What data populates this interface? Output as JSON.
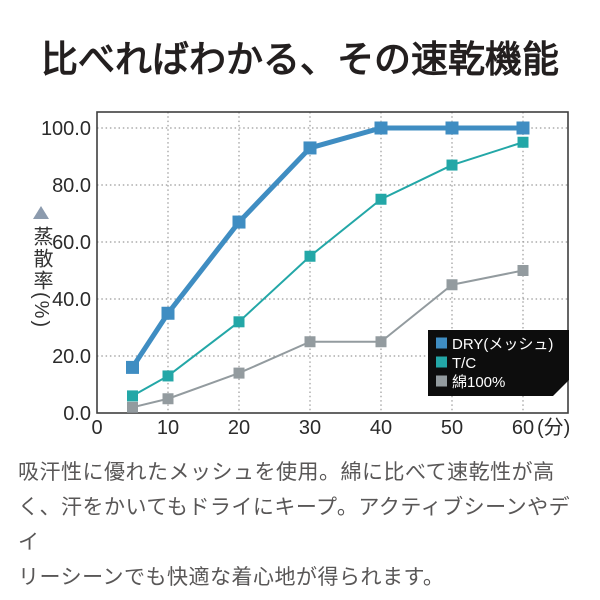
{
  "title": "比べればわかる、その速乾機能",
  "description": "吸汗性に優れたメッシュを使用。綿に比べて速乾性が高\nく、汗をかいてもドライにキープ。アクティブシーンやデイ\nリーシーンでも快適な着心地が得られます。",
  "chart_data": {
    "type": "line",
    "title": "",
    "xlabel": "",
    "ylabel": "蒸散率(%)",
    "x_axis_unit": "(分)",
    "x": [
      5,
      10,
      20,
      30,
      40,
      50,
      60
    ],
    "x_ticks": [
      0,
      10,
      20,
      30,
      40,
      50,
      60
    ],
    "x_tick_labels": [
      "0",
      "10",
      "20",
      "30",
      "40",
      "50",
      "60"
    ],
    "y_ticks": [
      0,
      20,
      40,
      60,
      80,
      100
    ],
    "y_tick_labels": [
      "0.0",
      "20.0",
      "40.0",
      "60.0",
      "80.0",
      "100.0"
    ],
    "xlim": [
      0,
      66
    ],
    "ylim": [
      0,
      106
    ],
    "grid": "dotted",
    "legend_position": "bottom-right",
    "series": [
      {
        "id": "dry-mesh",
        "name": "DRY(メッシュ)",
        "color": "#3f8dc2",
        "line_width": 5,
        "marker_size": 13,
        "values": [
          16,
          35,
          67,
          93,
          100,
          100,
          100
        ]
      },
      {
        "id": "tc",
        "name": "T/C",
        "color": "#23a7a7",
        "line_width": 2,
        "marker_size": 11,
        "values": [
          6,
          13,
          32,
          55,
          75,
          87,
          95
        ]
      },
      {
        "id": "cotton-100",
        "name": "綿100%",
        "color": "#939b9f",
        "line_width": 2,
        "marker_size": 11,
        "values": [
          2,
          5,
          14,
          25,
          25,
          45,
          50
        ]
      }
    ]
  },
  "colors": {
    "background": "#ffffff",
    "title_text": "#231f1f",
    "body_text": "#595757",
    "axis_text": "#2b2b2b",
    "grid": "#9a9a9a",
    "plot_border": "#3f3f3f",
    "y_axis_triangle": "#8c9bae",
    "legend_bg": "#0d0d0d",
    "legend_text": "#ffffff"
  }
}
